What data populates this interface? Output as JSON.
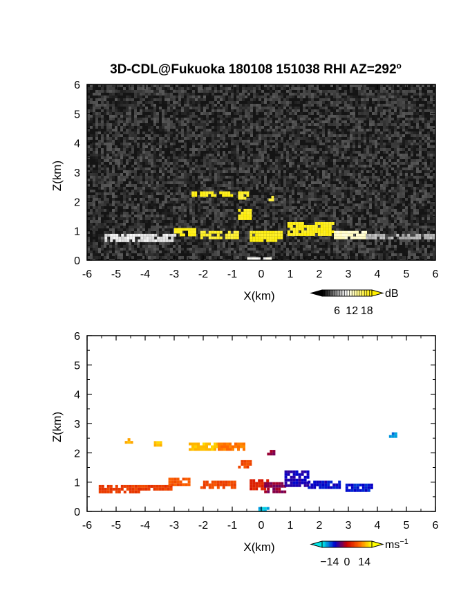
{
  "chart_data": [
    {
      "type": "heatmap",
      "title": "3D-CDL@Fukuoka 180108 151038 RHI AZ=292",
      "title_superscript": "o",
      "xlabel": "X(km)",
      "ylabel": "Z(km)",
      "xlim": [
        -6,
        6
      ],
      "ylim": [
        0,
        6
      ],
      "x_ticks": [
        "-6",
        "-5",
        "-4",
        "-3",
        "-2",
        "-1",
        "0",
        "1",
        "2",
        "3",
        "4",
        "5",
        "6"
      ],
      "y_ticks": [
        "0",
        "1",
        "2",
        "3",
        "4",
        "5",
        "6"
      ],
      "background": "noise",
      "colorbar": {
        "unit": "dB",
        "ticks": [
          "6",
          "12",
          "18"
        ],
        "range": [
          0,
          20
        ],
        "colors": [
          "#000000",
          "#ffffff",
          "#ffee00"
        ]
      },
      "features": [
        {
          "x": [
            -5.4,
            -3.0
          ],
          "z": [
            0.7,
            0.9
          ],
          "value": 9
        },
        {
          "x": [
            -3.0,
            -2.3
          ],
          "z": [
            0.9,
            1.1
          ],
          "value": 19
        },
        {
          "x": [
            -2.1,
            -0.8
          ],
          "z": [
            0.75,
            1.0
          ],
          "value": 18
        },
        {
          "x": [
            -2.4,
            -1.0
          ],
          "z": [
            2.2,
            2.35
          ],
          "value": 19
        },
        {
          "x": [
            -0.8,
            -0.4
          ],
          "z": [
            1.45,
            1.75
          ],
          "value": 19
        },
        {
          "x": [
            -0.8,
            -0.5
          ],
          "z": [
            2.15,
            2.35
          ],
          "value": 18
        },
        {
          "x": [
            0.25,
            0.4
          ],
          "z": [
            2.0,
            2.2
          ],
          "value": 17
        },
        {
          "x": [
            -0.4,
            0.7
          ],
          "z": [
            0.65,
            1.0
          ],
          "value": 19
        },
        {
          "x": [
            0.9,
            2.5
          ],
          "z": [
            0.85,
            1.3
          ],
          "value": 19
        },
        {
          "x": [
            2.5,
            3.6
          ],
          "z": [
            0.75,
            1.0
          ],
          "value": 12
        },
        {
          "x": [
            3.6,
            6.0
          ],
          "z": [
            0.75,
            0.9
          ],
          "value": 7
        },
        {
          "x": [
            -0.5,
            0.3
          ],
          "z": [
            0.0,
            0.1
          ],
          "value": 10
        }
      ]
    },
    {
      "type": "heatmap",
      "title": "",
      "xlabel": "X(km)",
      "ylabel": "Z(km)",
      "xlim": [
        -6,
        6
      ],
      "ylim": [
        0,
        6
      ],
      "x_ticks": [
        "-6",
        "-5",
        "-4",
        "-3",
        "-2",
        "-1",
        "0",
        "1",
        "2",
        "3",
        "4",
        "5",
        "6"
      ],
      "y_ticks": [
        "0",
        "1",
        "2",
        "3",
        "4",
        "5",
        "6"
      ],
      "background": "white",
      "colorbar": {
        "unit": "ms",
        "unit_superscript": "−1",
        "ticks": [
          "−14",
          "0",
          "14"
        ],
        "range": [
          -20,
          20
        ],
        "colors": [
          "#00e6e6",
          "#0000cc",
          "#cc0000",
          "#ff6600",
          "#ffff00"
        ]
      },
      "features": [
        {
          "x": [
            -5.6,
            -4.2
          ],
          "z": [
            0.7,
            0.9
          ],
          "value": 6
        },
        {
          "x": [
            -4.2,
            -3.0
          ],
          "z": [
            0.75,
            0.9
          ],
          "value": 6
        },
        {
          "x": [
            -3.2,
            -2.5
          ],
          "z": [
            0.9,
            1.15
          ],
          "value": 8
        },
        {
          "x": [
            -2.1,
            -0.9
          ],
          "z": [
            0.8,
            1.05
          ],
          "value": 7
        },
        {
          "x": [
            -2.5,
            -1.5
          ],
          "z": [
            2.15,
            2.35
          ],
          "value": 16
        },
        {
          "x": [
            -1.5,
            -0.6
          ],
          "z": [
            2.1,
            2.35
          ],
          "value": 11
        },
        {
          "x": [
            -0.8,
            -0.4
          ],
          "z": [
            1.5,
            1.75
          ],
          "value": 7
        },
        {
          "x": [
            -4.7,
            -4.5
          ],
          "z": [
            2.4,
            2.5
          ],
          "value": 15
        },
        {
          "x": [
            -3.7,
            -3.5
          ],
          "z": [
            2.3,
            2.4
          ],
          "value": 16
        },
        {
          "x": [
            -0.4,
            0.2
          ],
          "z": [
            0.75,
            1.1
          ],
          "value": 3
        },
        {
          "x": [
            0.1,
            0.8
          ],
          "z": [
            0.65,
            1.0
          ],
          "value": -3
        },
        {
          "x": [
            0.2,
            0.4
          ],
          "z": [
            1.95,
            2.1
          ],
          "value": -3
        },
        {
          "x": [
            0.8,
            1.6
          ],
          "z": [
            0.9,
            1.4
          ],
          "value": -9
        },
        {
          "x": [
            1.6,
            2.7
          ],
          "z": [
            0.8,
            1.05
          ],
          "value": -10
        },
        {
          "x": [
            2.9,
            3.8
          ],
          "z": [
            0.75,
            0.95
          ],
          "value": -11
        },
        {
          "x": [
            4.4,
            4.6
          ],
          "z": [
            2.6,
            2.7
          ],
          "value": -16
        },
        {
          "x": [
            -0.1,
            0.25
          ],
          "z": [
            0.0,
            0.15
          ],
          "value": -18
        }
      ]
    }
  ]
}
